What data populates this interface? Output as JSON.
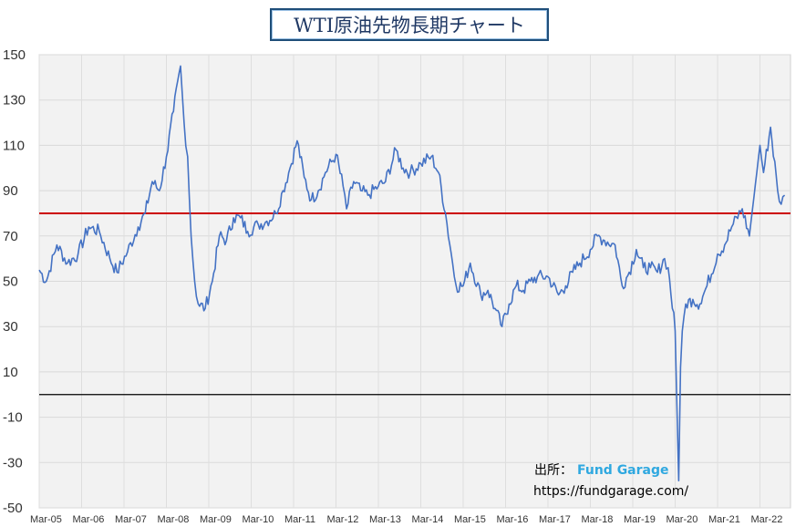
{
  "chart_data": {
    "type": "line",
    "title": "WTI原油先物長期チャート",
    "ylim": [
      -50,
      150
    ],
    "yticks": [
      150,
      130,
      110,
      90,
      70,
      50,
      30,
      10,
      -10,
      -30,
      -50
    ],
    "xtick_labels": [
      "Mar-05",
      "Mar-06",
      "Mar-07",
      "Mar-08",
      "Mar-09",
      "Mar-10",
      "Mar-11",
      "Mar-12",
      "Mar-13",
      "Mar-14",
      "Mar-15",
      "Mar-16",
      "Mar-17",
      "Mar-18",
      "Mar-19",
      "Mar-20",
      "Mar-21",
      "Mar-22"
    ],
    "grid": true,
    "reference_lines": [
      {
        "value": 80,
        "color": "#cc0000"
      },
      {
        "value": 0,
        "color": "#000000"
      }
    ],
    "series": [
      {
        "color": "#4472c4",
        "x": [
          "2005-03",
          "2005-05",
          "2005-08",
          "2005-11",
          "2006-02",
          "2006-05",
          "2006-08",
          "2006-11",
          "2007-01",
          "2007-04",
          "2007-07",
          "2007-09",
          "2007-11",
          "2008-01",
          "2008-03",
          "2008-05",
          "2008-07",
          "2008-08",
          "2008-09",
          "2008-10",
          "2008-11",
          "2008-12",
          "2009-02",
          "2009-04",
          "2009-06",
          "2009-08",
          "2009-10",
          "2009-12",
          "2010-02",
          "2010-05",
          "2010-07",
          "2010-10",
          "2010-12",
          "2011-02",
          "2011-04",
          "2011-06",
          "2011-08",
          "2011-10",
          "2011-12",
          "2012-03",
          "2012-05",
          "2012-06",
          "2012-08",
          "2012-10",
          "2012-12",
          "2013-03",
          "2013-05",
          "2013-08",
          "2013-10",
          "2013-12",
          "2014-03",
          "2014-06",
          "2014-08",
          "2014-10",
          "2014-12",
          "2015-01",
          "2015-03",
          "2015-05",
          "2015-08",
          "2015-10",
          "2015-12",
          "2016-02",
          "2016-04",
          "2016-06",
          "2016-08",
          "2016-10",
          "2016-12",
          "2017-03",
          "2017-06",
          "2017-08",
          "2017-10",
          "2017-12",
          "2018-03",
          "2018-05",
          "2018-07",
          "2018-10",
          "2018-12",
          "2019-02",
          "2019-04",
          "2019-06",
          "2019-08",
          "2019-10",
          "2019-12",
          "2020-01",
          "2020-03",
          "2020-04",
          "2020-04b",
          "2020-05",
          "2020-06",
          "2020-08",
          "2020-10",
          "2020-12",
          "2021-03",
          "2021-05",
          "2021-07",
          "2021-10",
          "2021-12",
          "2022-03",
          "2022-04",
          "2022-06",
          "2022-08",
          "2022-09",
          "2022-10"
        ],
        "values": [
          55,
          50,
          66,
          58,
          62,
          74,
          72,
          60,
          54,
          63,
          74,
          80,
          94,
          90,
          105,
          125,
          145,
          120,
          105,
          70,
          50,
          40,
          38,
          50,
          70,
          68,
          78,
          78,
          72,
          75,
          76,
          80,
          90,
          100,
          112,
          96,
          86,
          90,
          98,
          106,
          92,
          82,
          94,
          90,
          88,
          92,
          94,
          108,
          100,
          98,
          102,
          105,
          98,
          80,
          58,
          48,
          48,
          58,
          44,
          46,
          38,
          30,
          40,
          48,
          46,
          50,
          52,
          52,
          44,
          48,
          54,
          58,
          64,
          70,
          68,
          66,
          48,
          54,
          64,
          56,
          56,
          54,
          60,
          56,
          28,
          -38,
          12,
          28,
          40,
          42,
          40,
          48,
          62,
          66,
          74,
          82,
          70,
          110,
          98,
          118,
          90,
          84,
          88
        ]
      }
    ]
  },
  "source": {
    "label": "出所：",
    "brand": "Fund Garage",
    "url": "https://fundgarage.com/"
  }
}
